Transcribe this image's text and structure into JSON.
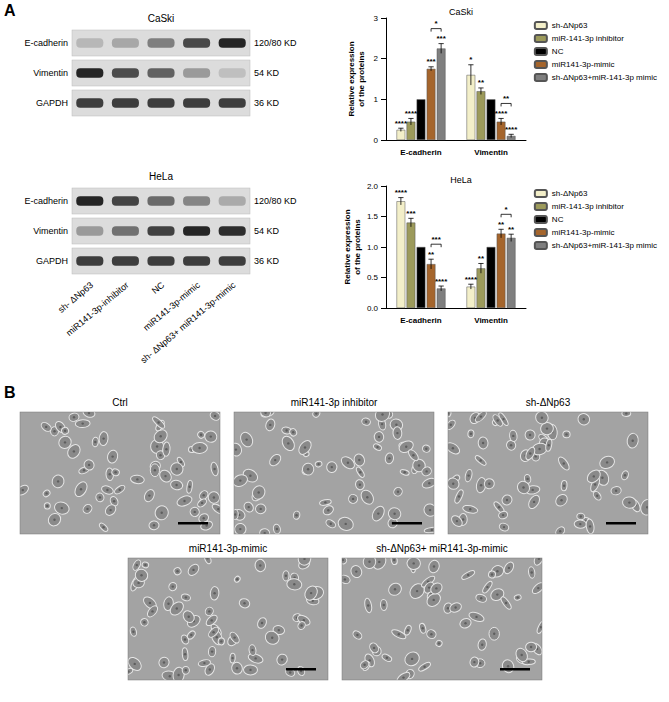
{
  "panel_labels": [
    "A",
    "B"
  ],
  "blots": [
    {
      "cell_line": "CaSki",
      "proteins": [
        {
          "name": "E-cadherin",
          "size": "120/80 KD"
        },
        {
          "name": "Vimentin",
          "size": "54 KD"
        },
        {
          "name": "GAPDH",
          "size": "36 KD"
        }
      ]
    },
    {
      "cell_line": "HeLa",
      "proteins": [
        {
          "name": "E-cadherin",
          "size": "120/80 KD"
        },
        {
          "name": "Vimentin",
          "size": "54 KD"
        },
        {
          "name": "GAPDH",
          "size": "36 KD"
        }
      ],
      "lanes": [
        "sh- ΔNp63",
        "miR141-3p-inhibitor",
        "NC",
        "miR141-3p-mimic",
        "sh- ΔNp63+ miR141-3p-mimic"
      ]
    }
  ],
  "chart_data": [
    {
      "type": "bar",
      "title": "CaSki",
      "ylabel": "Relative expression of the proteins",
      "categories": [
        "E-cadherin",
        "Vimentin"
      ],
      "series": [
        {
          "name": "sh-ΔNp63",
          "color": "#f3efc9",
          "values": [
            0.25,
            1.6
          ],
          "errors": [
            0.04,
            0.25
          ],
          "stars": [
            "****",
            "*"
          ]
        },
        {
          "name": "miR-141-3p inhibitor",
          "color": "#9c9a5b",
          "values": [
            0.45,
            1.2
          ],
          "errors": [
            0.08,
            0.08
          ],
          "stars": [
            "****",
            "**"
          ]
        },
        {
          "name": "NC",
          "color": "#000000",
          "values": [
            1,
            1
          ],
          "errors": [
            0,
            0
          ],
          "stars": [
            null,
            null
          ]
        },
        {
          "name": "miR141-3p-mimic",
          "color": "#a5652c",
          "values": [
            1.75,
            0.45
          ],
          "errors": [
            0.05,
            0.08
          ],
          "stars": [
            "***",
            "****"
          ]
        },
        {
          "name": "sh-ΔNp63+miR-141-3p mimic",
          "color": "#7f7f7f",
          "values": [
            2.25,
            0.1
          ],
          "errors": [
            0.12,
            0.04
          ],
          "stars": [
            "***",
            "****"
          ]
        }
      ],
      "comparisons": [
        {
          "category": "E-cadherin",
          "series": [
            "miR141-3p-mimic",
            "sh-ΔNp63+miR-141-3p mimic"
          ],
          "label": "*"
        },
        {
          "category": "Vimentin",
          "series": [
            "miR141-3p-mimic",
            "sh-ΔNp63+miR-141-3p mimic"
          ],
          "label": "**"
        }
      ],
      "ylim": [
        0,
        3
      ],
      "yticks": [
        0,
        1,
        2,
        3
      ],
      "grid": false,
      "legend": "top-right"
    },
    {
      "type": "bar",
      "title": "HeLa",
      "ylabel": "Relative expression of the proteins",
      "categories": [
        "E-cadherin",
        "Vimentin"
      ],
      "series": [
        {
          "name": "sh-ΔNp63",
          "color": "#f3efc9",
          "values": [
            1.75,
            0.35
          ],
          "errors": [
            0.06,
            0.04
          ],
          "stars": [
            "****",
            "****"
          ]
        },
        {
          "name": "miR-141-3p inhibitor",
          "color": "#9c9a5b",
          "values": [
            1.4,
            0.65
          ],
          "errors": [
            0.07,
            0.08
          ],
          "stars": [
            "***",
            "**"
          ]
        },
        {
          "name": "NC",
          "color": "#000000",
          "values": [
            1,
            1
          ],
          "errors": [
            0,
            0
          ],
          "stars": [
            null,
            null
          ]
        },
        {
          "name": "miR141-3p-mimic",
          "color": "#a5652c",
          "values": [
            0.72,
            1.22
          ],
          "errors": [
            0.08,
            0.07
          ],
          "stars": [
            "**",
            "**"
          ]
        },
        {
          "name": "sh-ΔNp63+miR-141-3p mimic",
          "color": "#7f7f7f",
          "values": [
            0.32,
            1.15
          ],
          "errors": [
            0.04,
            0.06
          ],
          "stars": [
            "****",
            "**"
          ]
        }
      ],
      "comparisons": [
        {
          "category": "E-cadherin",
          "series": [
            "miR141-3p-mimic",
            "sh-ΔNp63+miR-141-3p mimic"
          ],
          "label": "***"
        },
        {
          "category": "Vimentin",
          "series": [
            "miR141-3p-mimic",
            "sh-ΔNp63+miR-141-3p mimic"
          ],
          "label": "*"
        }
      ],
      "ylim": [
        0,
        2
      ],
      "yticks": [
        {
          "value": 0,
          "label": "0.0"
        },
        {
          "value": 0.5,
          "label": "0.5"
        },
        {
          "value": 1,
          "label": "1.0"
        },
        {
          "value": 1.5,
          "label": "1.5"
        },
        {
          "value": 2,
          "label": "2.0"
        }
      ],
      "grid": false,
      "legend": "top-right"
    }
  ],
  "micrographs": [
    {
      "title": "Ctrl"
    },
    {
      "title": "miR141-3p inhibitor"
    },
    {
      "title": "sh-ΔNp63"
    },
    {
      "title": "miR141-3p-mimic"
    },
    {
      "title": "sh-ΔNp63+ miR141-3p-mimic"
    }
  ]
}
